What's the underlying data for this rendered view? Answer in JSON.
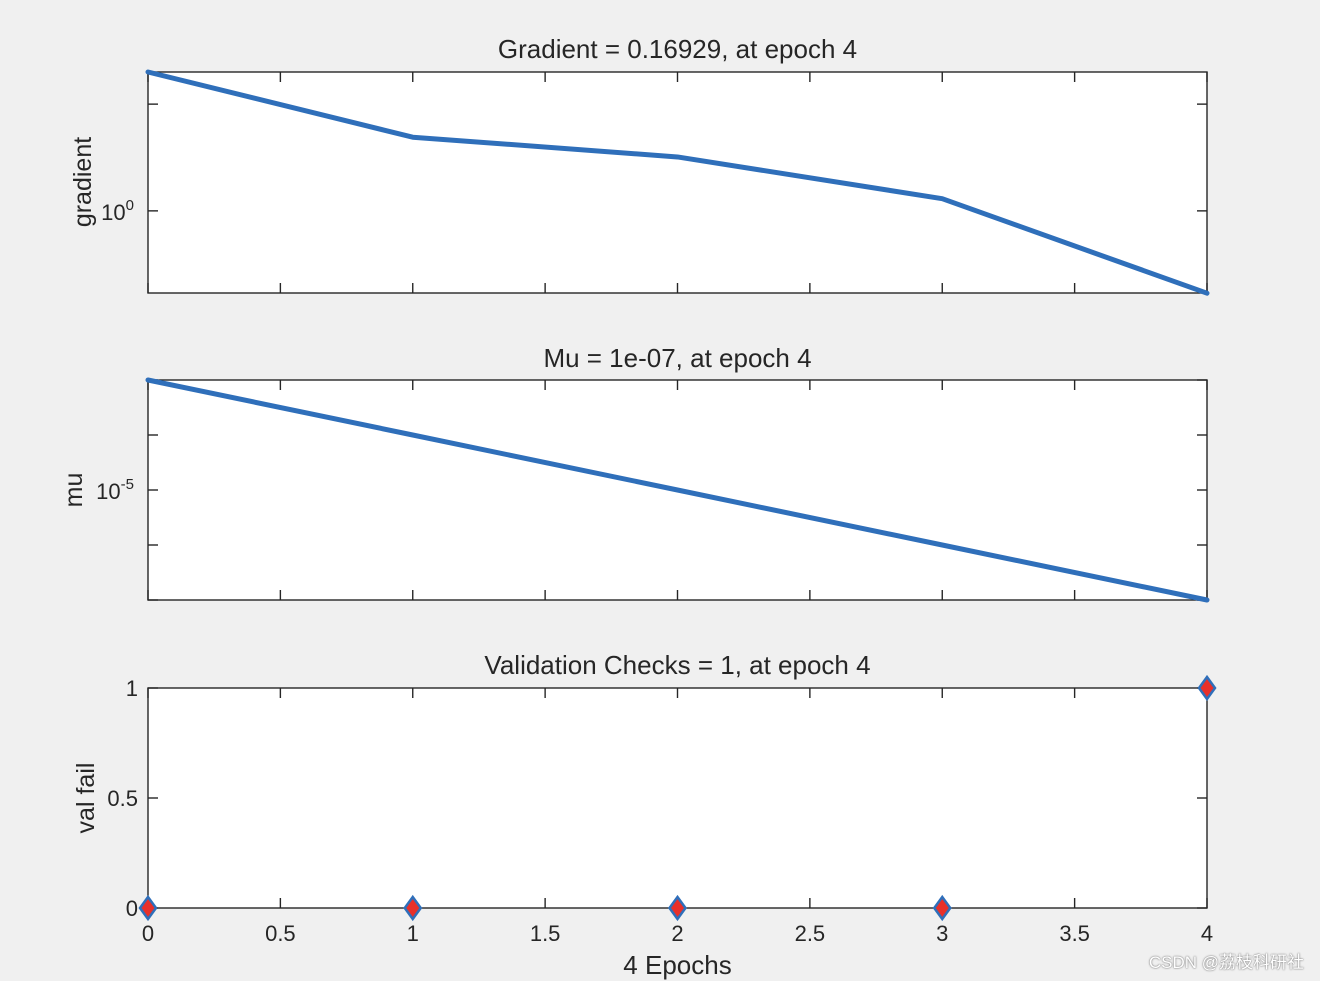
{
  "chart_data": [
    {
      "type": "line",
      "title": "Gradient = 0.16929, at epoch 4",
      "ylabel": "gradient",
      "xlabel": "",
      "yscale": "log",
      "xlim": [
        0,
        4
      ],
      "xticks": [
        0,
        0.5,
        1,
        1.5,
        2,
        2.5,
        3,
        3.5,
        4
      ],
      "ytick_labels": [
        {
          "value": 1,
          "base": "10",
          "exp": "0"
        }
      ],
      "ylim": [
        0.17,
        20
      ],
      "series": [
        {
          "x": [
            0,
            1,
            2,
            3,
            4
          ],
          "values": [
            20,
            4.9,
            3.2,
            1.3,
            0.16929
          ],
          "color": "#2f6fba"
        }
      ]
    },
    {
      "type": "line",
      "title": "Mu = 1e-07, at epoch 4",
      "ylabel": "mu",
      "xlabel": "",
      "yscale": "log",
      "xlim": [
        0,
        4
      ],
      "xticks": [
        0,
        0.5,
        1,
        1.5,
        2,
        2.5,
        3,
        3.5,
        4
      ],
      "ytick_labels": [
        {
          "value": 1e-05,
          "base": "10",
          "exp": "-5"
        }
      ],
      "ylim": [
        1e-07,
        0.001
      ],
      "series": [
        {
          "x": [
            0,
            1,
            2,
            3,
            4
          ],
          "values": [
            0.001,
            0.0001,
            1e-05,
            1e-06,
            1e-07
          ],
          "color": "#2f6fba"
        }
      ]
    },
    {
      "type": "scatter",
      "title": "Validation Checks = 1, at epoch 4",
      "ylabel": "val fail",
      "xlabel": "4 Epochs",
      "yscale": "linear",
      "xlim": [
        0,
        4
      ],
      "ylim": [
        0,
        1
      ],
      "xticks": [
        0,
        0.5,
        1,
        1.5,
        2,
        2.5,
        3,
        3.5,
        4
      ],
      "xtick_labels": [
        "0",
        "0.5",
        "1",
        "1.5",
        "2",
        "2.5",
        "3",
        "3.5",
        "4"
      ],
      "yticks": [
        0,
        0.5,
        1
      ],
      "ytick_labels": [
        "0",
        "0.5",
        "1"
      ],
      "series": [
        {
          "x": [
            0,
            1,
            2,
            3,
            4
          ],
          "values": [
            0,
            0,
            0,
            0,
            1
          ],
          "marker": "diamond",
          "color": "#e8302a",
          "edge_color": "#2f6fba"
        }
      ]
    }
  ],
  "watermark": "CSDN @荔枝科研社"
}
